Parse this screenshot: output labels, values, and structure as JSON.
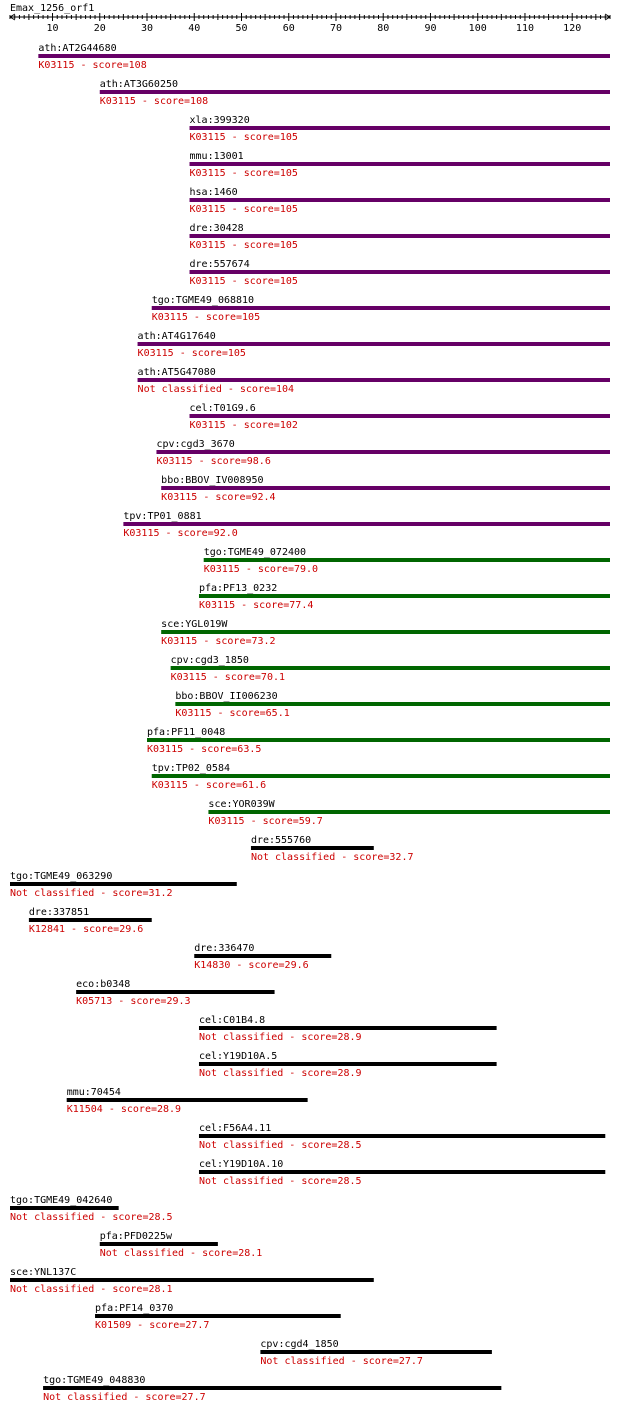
{
  "chart_data": {
    "type": "bar",
    "title": "Emax_1256_orf1",
    "xlim": [
      1,
      128
    ],
    "xticks": [
      10,
      20,
      30,
      40,
      50,
      60,
      70,
      80,
      90,
      100,
      110,
      120
    ],
    "colors": {
      "purple": "#660066",
      "green": "#006600",
      "black": "#000000",
      "label": "#000000",
      "desc": "#cc0000"
    },
    "hits": [
      {
        "name": "ath:AT2G44680",
        "desc": "K03115 - score=108",
        "start": 7,
        "end": 128,
        "color": "purple"
      },
      {
        "name": "ath:AT3G60250",
        "desc": "K03115 - score=108",
        "start": 20,
        "end": 128,
        "color": "purple"
      },
      {
        "name": "xla:399320",
        "desc": "K03115 - score=105",
        "start": 39,
        "end": 128,
        "color": "purple"
      },
      {
        "name": "mmu:13001",
        "desc": "K03115 - score=105",
        "start": 39,
        "end": 128,
        "color": "purple"
      },
      {
        "name": "hsa:1460",
        "desc": "K03115 - score=105",
        "start": 39,
        "end": 128,
        "color": "purple"
      },
      {
        "name": "dre:30428",
        "desc": "K03115 - score=105",
        "start": 39,
        "end": 128,
        "color": "purple"
      },
      {
        "name": "dre:557674",
        "desc": "K03115 - score=105",
        "start": 39,
        "end": 128,
        "color": "purple"
      },
      {
        "name": "tgo:TGME49_068810",
        "desc": "K03115 - score=105",
        "start": 31,
        "end": 128,
        "color": "purple"
      },
      {
        "name": "ath:AT4G17640",
        "desc": "K03115 - score=105",
        "start": 28,
        "end": 128,
        "color": "purple"
      },
      {
        "name": "ath:AT5G47080",
        "desc": "Not classified - score=104",
        "start": 28,
        "end": 128,
        "color": "purple"
      },
      {
        "name": "cel:T01G9.6",
        "desc": "K03115 - score=102",
        "start": 39,
        "end": 128,
        "color": "purple"
      },
      {
        "name": "cpv:cgd3_3670",
        "desc": "K03115 - score=98.6",
        "start": 32,
        "end": 128,
        "color": "purple"
      },
      {
        "name": "bbo:BBOV_IV008950",
        "desc": "K03115 - score=92.4",
        "start": 33,
        "end": 128,
        "color": "purple"
      },
      {
        "name": "tpv:TP01_0881",
        "desc": "K03115 - score=92.0",
        "start": 25,
        "end": 128,
        "color": "purple"
      },
      {
        "name": "tgo:TGME49_072400",
        "desc": "K03115 - score=79.0",
        "start": 42,
        "end": 128,
        "color": "green"
      },
      {
        "name": "pfa:PF13_0232",
        "desc": "K03115 - score=77.4",
        "start": 41,
        "end": 128,
        "color": "green"
      },
      {
        "name": "sce:YGL019W",
        "desc": "K03115 - score=73.2",
        "start": 33,
        "end": 128,
        "color": "green"
      },
      {
        "name": "cpv:cgd3_1850",
        "desc": "K03115 - score=70.1",
        "start": 35,
        "end": 128,
        "color": "green"
      },
      {
        "name": "bbo:BBOV_II006230",
        "desc": "K03115 - score=65.1",
        "start": 36,
        "end": 128,
        "color": "green"
      },
      {
        "name": "pfa:PF11_0048",
        "desc": "K03115 - score=63.5",
        "start": 30,
        "end": 128,
        "color": "green"
      },
      {
        "name": "tpv:TP02_0584",
        "desc": "K03115 - score=61.6",
        "start": 31,
        "end": 128,
        "color": "green"
      },
      {
        "name": "sce:YOR039W",
        "desc": "K03115 - score=59.7",
        "start": 43,
        "end": 128,
        "color": "green"
      },
      {
        "name": "dre:555760",
        "desc": "Not classified - score=32.7",
        "start": 52,
        "end": 78,
        "color": "black"
      },
      {
        "name": "tgo:TGME49_063290",
        "desc": "Not classified - score=31.2",
        "start": 1,
        "end": 49,
        "color": "black"
      },
      {
        "name": "dre:337851",
        "desc": "K12841 - score=29.6",
        "start": 5,
        "end": 31,
        "color": "black"
      },
      {
        "name": "dre:336470",
        "desc": "K14830 - score=29.6",
        "start": 40,
        "end": 69,
        "color": "black"
      },
      {
        "name": "eco:b0348",
        "desc": "K05713 - score=29.3",
        "start": 15,
        "end": 57,
        "color": "black"
      },
      {
        "name": "cel:C01B4.8",
        "desc": "Not classified - score=28.9",
        "start": 41,
        "end": 104,
        "color": "black"
      },
      {
        "name": "cel:Y19D10A.5",
        "desc": "Not classified - score=28.9",
        "start": 41,
        "end": 104,
        "color": "black"
      },
      {
        "name": "mmu:70454",
        "desc": "K11504 - score=28.9",
        "start": 13,
        "end": 64,
        "color": "black"
      },
      {
        "name": "cel:F56A4.11",
        "desc": "Not classified - score=28.5",
        "start": 41,
        "end": 127,
        "color": "black"
      },
      {
        "name": "cel:Y19D10A.10",
        "desc": "Not classified - score=28.5",
        "start": 41,
        "end": 127,
        "color": "black"
      },
      {
        "name": "tgo:TGME49_042640",
        "desc": "Not classified - score=28.5",
        "start": 1,
        "end": 24,
        "color": "black"
      },
      {
        "name": "pfa:PFD0225w",
        "desc": "Not classified - score=28.1",
        "start": 20,
        "end": 45,
        "color": "black"
      },
      {
        "name": "sce:YNL137C",
        "desc": "Not classified - score=28.1",
        "start": 1,
        "end": 78,
        "color": "black"
      },
      {
        "name": "pfa:PF14_0370",
        "desc": "K01509 - score=27.7",
        "start": 19,
        "end": 71,
        "color": "black"
      },
      {
        "name": "cpv:cgd4_1850",
        "desc": "Not classified - score=27.7",
        "start": 54,
        "end": 103,
        "color": "black"
      },
      {
        "name": "tgo:TGME49_048830",
        "desc": "Not classified - score=27.7",
        "start": 8,
        "end": 105,
        "color": "black"
      }
    ]
  }
}
